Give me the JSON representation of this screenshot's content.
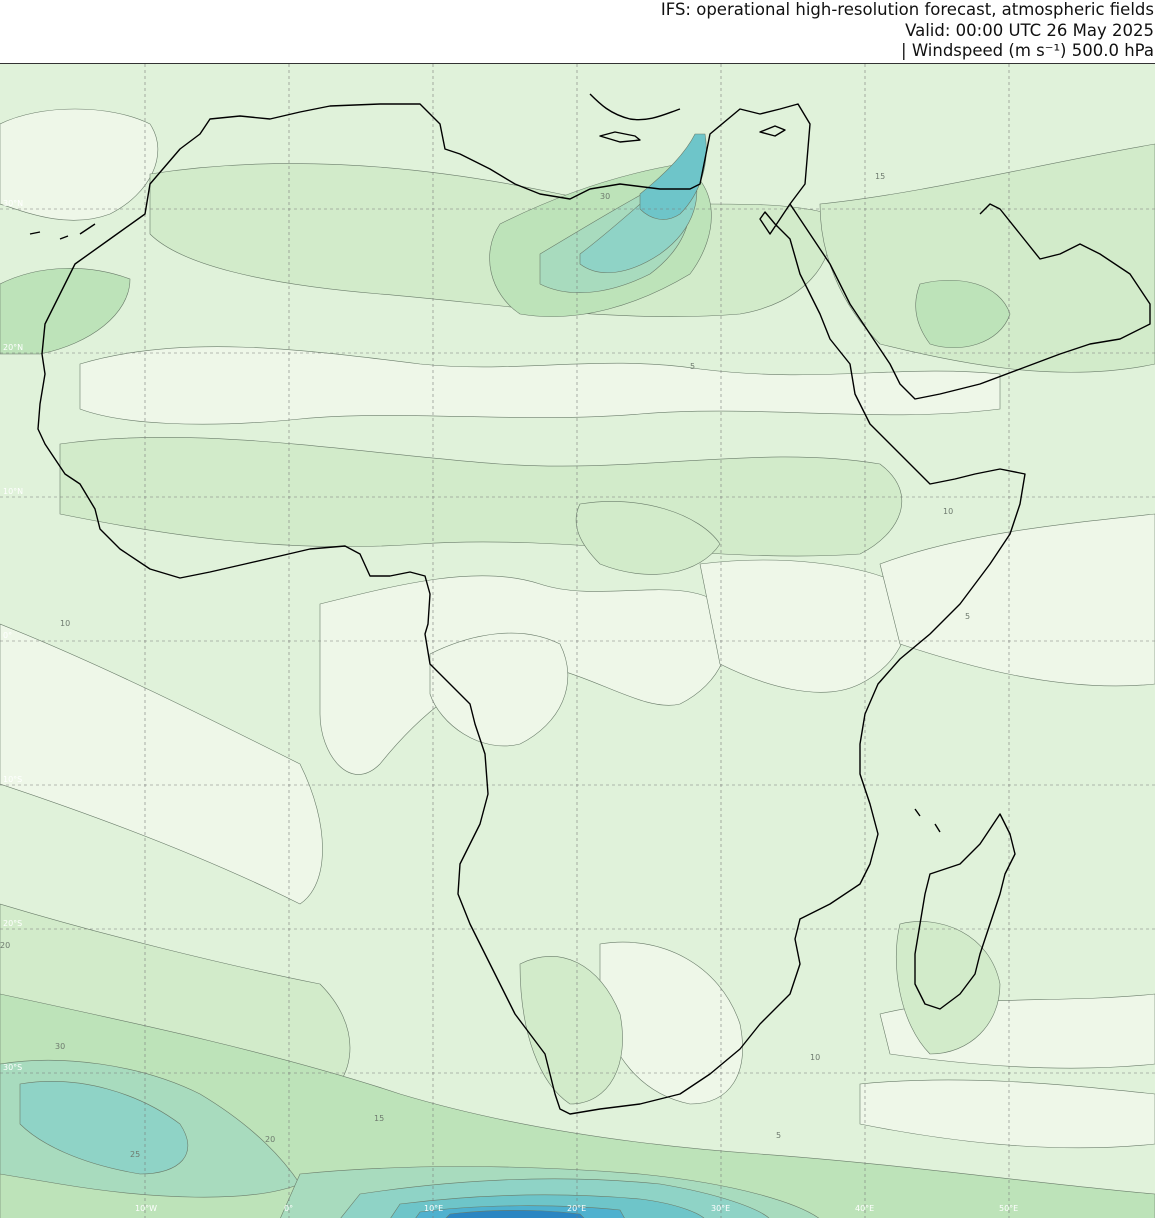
{
  "header": {
    "title": "IFS: operational high-resolution forecast, atmospheric fields",
    "valid": "Valid: 00:00 UTC 26 May 2025",
    "field": "| Windspeed (m s⁻¹) 500.0 hPa"
  },
  "map": {
    "projection": "orthographic",
    "region": "Africa",
    "parameter": "windspeed",
    "level_hpa": 500.0,
    "units": "m s⁻¹",
    "contour_levels": [
      5,
      10,
      15,
      20,
      25,
      30
    ],
    "colors": {
      "lt5": "#eef7e8",
      "5to10": "#e0f2da",
      "10to15": "#d2ebca",
      "15to20": "#bde3b9",
      "20to25": "#a8dbbe",
      "25to30": "#8fd3c6",
      "30to35": "#6ec5c9",
      "35to40": "#4fb1cf",
      "40plus": "#2b86c2",
      "coastline": "#000000",
      "contour": "#6a7c6a",
      "grid": "#7a7a7a"
    },
    "longitude_labels": [
      "10°W",
      "0°",
      "10°E",
      "20°E",
      "30°E",
      "40°E",
      "50°E"
    ],
    "latitude_labels": [
      "30°N",
      "20°N",
      "10°N",
      "0°",
      "10°S",
      "20°S",
      "30°S"
    ],
    "contour_labels": [
      "5",
      "10",
      "15",
      "20",
      "25",
      "30"
    ]
  }
}
